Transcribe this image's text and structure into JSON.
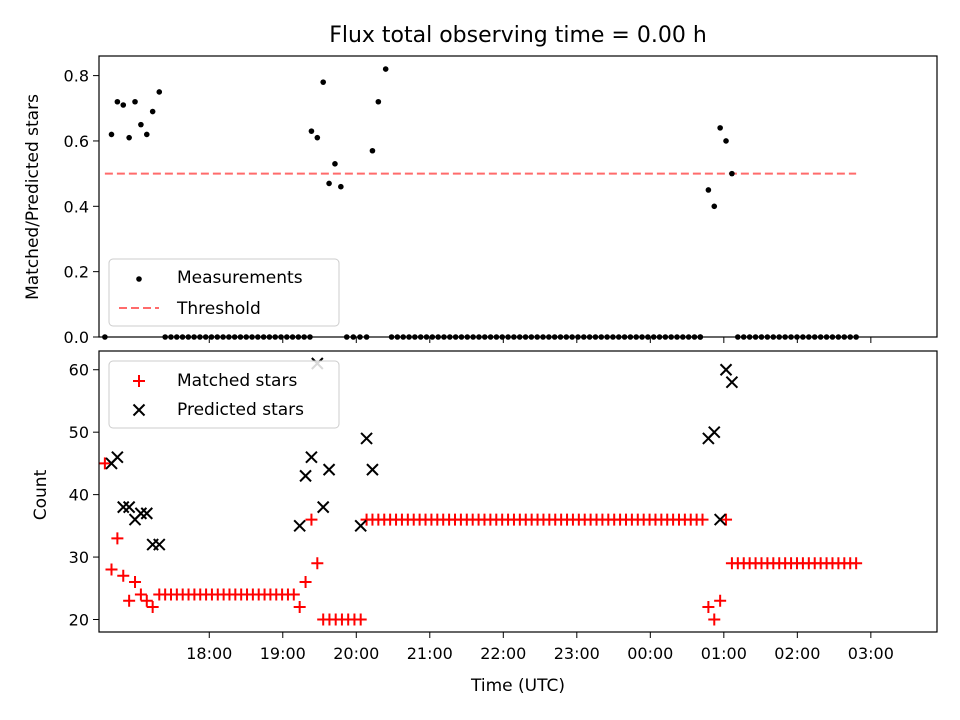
{
  "chart_data": [
    {
      "type": "scatter",
      "title": "Flux total observing time = 0.00 h",
      "xlabel": "",
      "ylabel": "Matched/Predicted stars",
      "xlim": [
        -0.5,
        10.9
      ],
      "ylim": [
        0.0,
        0.86
      ],
      "yticks": [
        0.0,
        0.2,
        0.4,
        0.6,
        0.8
      ],
      "ytick_labels": [
        "0.0",
        "0.2",
        "0.4",
        "0.6",
        "0.8"
      ],
      "xtick_positions": [
        1,
        2,
        3,
        4,
        5,
        6,
        7,
        8,
        9,
        10
      ],
      "legend_loc": "lower left",
      "series": [
        {
          "name": "Measurements",
          "marker": "dot",
          "color": "#000000",
          "points": [
            [
              -0.42,
              0.0
            ],
            [
              -0.33,
              0.62
            ],
            [
              -0.25,
              0.72
            ],
            [
              -0.17,
              0.71
            ],
            [
              -0.09,
              0.61
            ],
            [
              -0.01,
              0.72
            ],
            [
              0.07,
              0.65
            ],
            [
              0.15,
              0.62
            ],
            [
              0.23,
              0.69
            ],
            [
              0.32,
              0.75
            ],
            [
              2.39,
              0.63
            ],
            [
              2.47,
              0.61
            ],
            [
              2.55,
              0.78
            ],
            [
              2.63,
              0.47
            ],
            [
              2.71,
              0.53
            ],
            [
              2.79,
              0.46
            ],
            [
              3.22,
              0.57
            ],
            [
              3.3,
              0.72
            ],
            [
              3.4,
              0.82
            ],
            [
              7.79,
              0.45
            ],
            [
              7.87,
              0.4
            ],
            [
              7.95,
              0.64
            ],
            [
              8.03,
              0.6
            ],
            [
              8.11,
              0.5
            ]
          ],
          "zero_runs": [
            [
              0.4,
              2.37,
              26
            ],
            [
              2.87,
              3.14,
              4
            ],
            [
              3.48,
              7.68,
              54
            ],
            [
              7.68,
              7.68,
              1
            ],
            [
              8.19,
              9.8,
              21
            ]
          ]
        },
        {
          "name": "Threshold",
          "style": "dashed",
          "color": "#ff6b6b",
          "x": [
            -0.42,
            9.8
          ],
          "value": 0.5
        }
      ]
    },
    {
      "type": "scatter",
      "title": "",
      "xlabel": "Time (UTC)",
      "ylabel": "Count",
      "xlim": [
        -0.5,
        10.9
      ],
      "ylim": [
        18,
        63
      ],
      "yticks": [
        20,
        30,
        40,
        50,
        60
      ],
      "ytick_labels": [
        "20",
        "30",
        "40",
        "50",
        "60"
      ],
      "xtick_positions": [
        1,
        2,
        3,
        4,
        5,
        6,
        7,
        8,
        9,
        10
      ],
      "xtick_labels": [
        "18:00",
        "19:00",
        "20:00",
        "21:00",
        "22:00",
        "23:00",
        "00:00",
        "01:00",
        "02:00",
        "03:00"
      ],
      "legend_loc": "upper left",
      "series": [
        {
          "name": "Matched stars",
          "marker": "plus",
          "color": "#ff0000",
          "points": [
            [
              -0.42,
              45
            ],
            [
              -0.33,
              28
            ],
            [
              -0.25,
              33
            ],
            [
              -0.17,
              27
            ],
            [
              -0.09,
              23
            ],
            [
              -0.01,
              26
            ],
            [
              0.07,
              24
            ],
            [
              0.15,
              23
            ],
            [
              0.23,
              22
            ],
            [
              0.32,
              24
            ],
            [
              2.23,
              22
            ],
            [
              2.31,
              26
            ],
            [
              2.39,
              36
            ],
            [
              2.47,
              29
            ],
            [
              3.14,
              36
            ]
          ],
          "runs": [
            [
              0.4,
              2.15,
              24,
              23
            ],
            [
              2.55,
              3.06,
              20,
              7
            ],
            [
              3.22,
              6.99,
              36,
              48
            ],
            [
              7.07,
              7.71,
              36,
              9
            ],
            [
              8.03,
              8.03,
              36,
              1
            ],
            [
              8.11,
              9.8,
              29,
              22
            ]
          ],
          "extra_points": [
            [
              7.79,
              22
            ],
            [
              7.87,
              20
            ],
            [
              7.95,
              23
            ]
          ]
        },
        {
          "name": "Predicted stars",
          "marker": "x",
          "color": "#000000",
          "points": [
            [
              -0.33,
              45
            ],
            [
              -0.25,
              46
            ],
            [
              -0.17,
              38
            ],
            [
              -0.09,
              38
            ],
            [
              -0.01,
              36
            ],
            [
              0.07,
              37
            ],
            [
              0.15,
              37
            ],
            [
              0.23,
              32
            ],
            [
              0.32,
              32
            ],
            [
              2.23,
              35
            ],
            [
              2.31,
              43
            ],
            [
              2.39,
              46
            ],
            [
              2.47,
              61
            ],
            [
              2.55,
              38
            ],
            [
              2.63,
              44
            ],
            [
              3.06,
              35
            ],
            [
              3.14,
              49
            ],
            [
              3.22,
              44
            ],
            [
              7.79,
              49
            ],
            [
              7.87,
              50
            ],
            [
              7.95,
              36
            ],
            [
              8.03,
              60
            ],
            [
              8.11,
              58
            ]
          ]
        }
      ]
    }
  ]
}
